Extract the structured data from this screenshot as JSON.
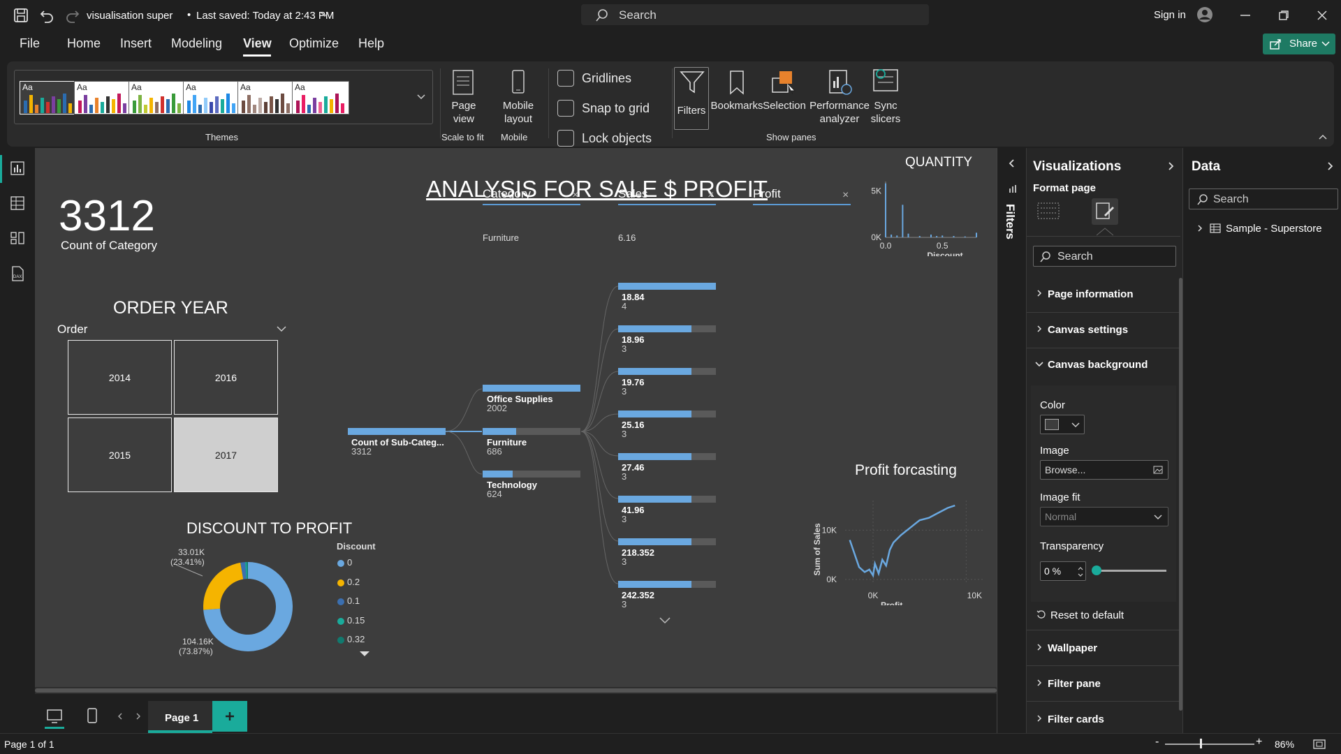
{
  "titlebar": {
    "file_name": "visualisation super",
    "saved_status": "Last saved: Today at 2:43 PM",
    "search_placeholder": "Search",
    "sign_in": "Sign in"
  },
  "menu": {
    "items": [
      "File",
      "Home",
      "Insert",
      "Modeling",
      "View",
      "Optimize",
      "Help"
    ],
    "active": "View",
    "share": "Share"
  },
  "ribbon": {
    "themes_label": "Themes",
    "theme_aa": "Aa",
    "page_view": "Page view",
    "scale_to_fit": "Scale to fit",
    "mobile_layout": "Mobile layout",
    "mobile": "Mobile",
    "gridlines": "Gridlines",
    "snap_to_grid": "Snap to grid",
    "lock_objects": "Lock objects",
    "filters": "Filters",
    "bookmarks": "Bookmarks",
    "selection": "Selection",
    "performance_analyzer": "Performance analyzer",
    "sync_slicers": "Sync slicers",
    "show_panes": "Show panes"
  },
  "report": {
    "title": "ANALYSIS FOR SALE $ PROFIT",
    "card": {
      "value": "3312",
      "label": "Count of Category"
    },
    "order_year": {
      "title": "ORDER YEAR",
      "field": "Order",
      "years": [
        "2014",
        "2016",
        "2015",
        "2017"
      ],
      "selected": "2017"
    },
    "slicers": [
      {
        "name": "Category",
        "value": "Furniture"
      },
      {
        "name": "Sales",
        "value": "6.16"
      },
      {
        "name": "Profit",
        "value": ""
      }
    ],
    "decomp": {
      "root": {
        "label": "Count of Sub-Categ...",
        "value": "3312"
      },
      "level1": [
        {
          "label": "Office Supplies",
          "value": "2002",
          "fraction": 1.0
        },
        {
          "label": "Furniture",
          "value": "686",
          "fraction": 0.34
        },
        {
          "label": "Technology",
          "value": "624",
          "fraction": 0.31
        }
      ],
      "level2": [
        {
          "label": "18.84",
          "value": "4",
          "fraction": 1.0
        },
        {
          "label": "18.96",
          "value": "3",
          "fraction": 0.75
        },
        {
          "label": "19.76",
          "value": "3",
          "fraction": 0.75
        },
        {
          "label": "25.16",
          "value": "3",
          "fraction": 0.75
        },
        {
          "label": "27.46",
          "value": "3",
          "fraction": 0.75
        },
        {
          "label": "41.96",
          "value": "3",
          "fraction": 0.75
        },
        {
          "label": "218.352",
          "value": "3",
          "fraction": 0.75
        },
        {
          "label": "242.352",
          "value": "3",
          "fraction": 0.75
        }
      ]
    },
    "discount_to_profit": {
      "title": "DISCOUNT TO PROFIT",
      "legend_title": "Discount",
      "legend": [
        {
          "label": "0",
          "color": "#6aa8e0"
        },
        {
          "label": "0.2",
          "color": "#f5b400"
        },
        {
          "label": "0.1",
          "color": "#3b6fb0"
        },
        {
          "label": "0.15",
          "color": "#1aab9b"
        },
        {
          "label": "0.32",
          "color": "#117a6f"
        }
      ],
      "labels": [
        {
          "value": "33.01K",
          "pct": "(23.41%)"
        },
        {
          "value": "104.16K",
          "pct": "(73.87%)"
        }
      ]
    },
    "quantity_chart": {
      "title": "QUANTITY"
    },
    "profit_chart": {
      "title": "Profit forcasting"
    }
  },
  "chart_data": [
    {
      "type": "pie",
      "title": "DISCOUNT TO PROFIT",
      "categories": [
        "0",
        "0.2",
        "0.1",
        "0.15",
        "0.32"
      ],
      "values": [
        104.16,
        33.01,
        2.4,
        0.8,
        0.6
      ],
      "colors": [
        "#6aa8e0",
        "#f5b400",
        "#3b6fb0",
        "#1aab9b",
        "#117a6f"
      ]
    },
    {
      "type": "bar",
      "title": "QUANTITY",
      "xlabel": "Discount",
      "ylabel": "",
      "x": [
        0.0,
        0.05,
        0.1,
        0.15,
        0.2,
        0.3,
        0.4,
        0.45,
        0.5,
        0.6,
        0.7,
        0.8
      ],
      "values": [
        5800,
        300,
        200,
        3500,
        400,
        150,
        300,
        150,
        200,
        150,
        100,
        500
      ],
      "xticks": [
        "0.0",
        "0.5"
      ],
      "yticks": [
        "0K",
        "5K"
      ],
      "xlim": [
        0,
        0.8
      ],
      "ylim": [
        0,
        6000
      ]
    },
    {
      "type": "line",
      "title": "Profit forcasting",
      "xlabel": "Profit",
      "ylabel": "Sum of Sales",
      "xticks": [
        "0K",
        "10K"
      ],
      "yticks": [
        "0K",
        "10K"
      ],
      "xlim": [
        -3000,
        12000
      ],
      "ylim": [
        -1000,
        16000
      ],
      "x": [
        -2500,
        -1500,
        -900,
        -400,
        0,
        200,
        600,
        1000,
        1400,
        1800,
        2200,
        3000,
        4000,
        5000,
        6000,
        7000,
        8000,
        8800
      ],
      "y": [
        8000,
        2500,
        1500,
        2000,
        800,
        3200,
        1200,
        4000,
        2800,
        6000,
        7500,
        9000,
        10500,
        12000,
        12500,
        13500,
        14500,
        15000
      ]
    }
  ],
  "viz_pane": {
    "title": "Visualizations",
    "format_page": "Format page",
    "search": "Search",
    "sections": [
      "Page information",
      "Canvas settings",
      "Canvas background"
    ],
    "color_label": "Color",
    "image_label": "Image",
    "browse": "Browse...",
    "image_fit_label": "Image fit",
    "image_fit_value": "Normal",
    "transparency_label": "Transparency",
    "transparency_value": "0 %",
    "transparency_level": 0,
    "reset": "Reset to default",
    "lower_sections": [
      "Wallpaper",
      "Filter pane",
      "Filter cards"
    ]
  },
  "data_pane": {
    "title": "Data",
    "search": "Search",
    "table": "Sample - Superstore"
  },
  "filters_label": "Filters",
  "pages": {
    "current": "Page 1"
  },
  "status": {
    "page": "Page 1 of 1",
    "zoom": "86%"
  }
}
